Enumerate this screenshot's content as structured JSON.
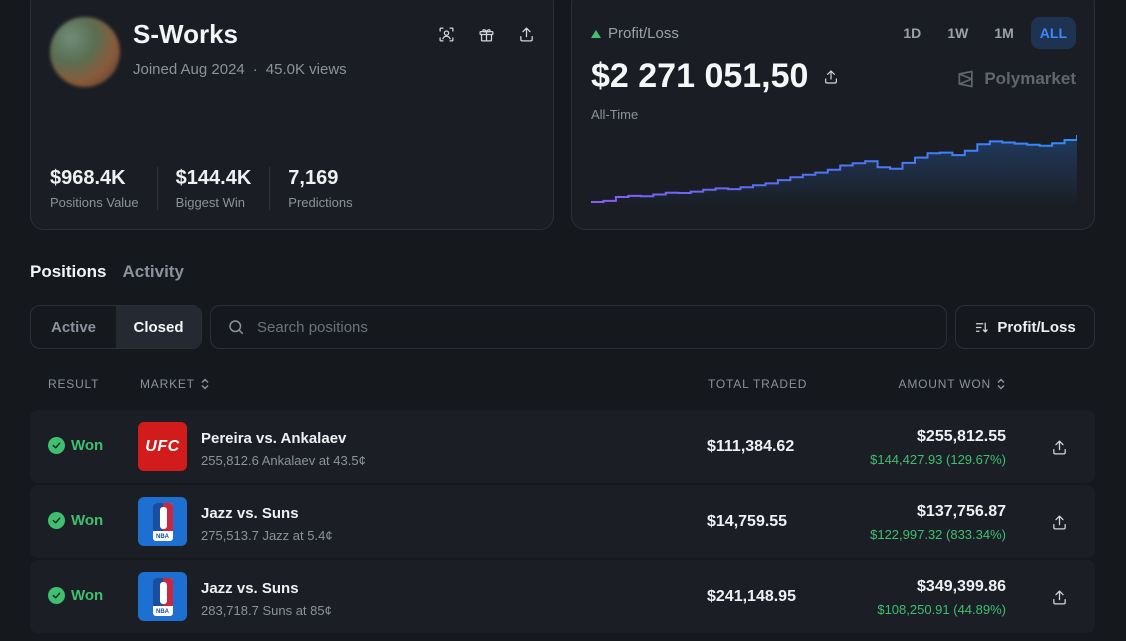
{
  "profile": {
    "username": "S-Works",
    "joined": "Joined Aug 2024",
    "views": "45.0K views",
    "stats": [
      {
        "value": "$968.4K",
        "label": "Positions Value"
      },
      {
        "value": "$144.4K",
        "label": "Biggest Win"
      },
      {
        "value": "7,169",
        "label": "Predictions"
      }
    ]
  },
  "pnl": {
    "label": "Profit/Loss",
    "value": "$2 271 051,50",
    "period": "All-Time",
    "brand": "Polymarket",
    "ranges": [
      "1D",
      "1W",
      "1M",
      "ALL"
    ],
    "active_range": "ALL",
    "series": [
      0.5,
      0.8,
      1.9,
      2.2,
      2.1,
      2.6,
      3.1,
      3.0,
      3.4,
      3.9,
      4.3,
      4.1,
      4.6,
      5.2,
      5.7,
      6.6,
      7.4,
      8.1,
      8.7,
      9.5,
      10.7,
      11.3,
      11.9,
      10.2,
      9.8,
      11.4,
      12.9,
      14.1,
      14.3,
      13.6,
      14.8,
      16.6,
      17.4,
      17.1,
      16.8,
      16.5,
      16.2,
      16.9,
      17.8,
      19.2
    ]
  },
  "tabs": {
    "positions": "Positions",
    "activity": "Activity"
  },
  "filters": {
    "active": "Active",
    "closed": "Closed",
    "search_placeholder": "Search positions",
    "sort_label": "Profit/Loss"
  },
  "columns": {
    "result": "RESULT",
    "market": "MARKET",
    "total_traded": "TOTAL TRADED",
    "amount_won": "AMOUNT WON"
  },
  "rows": [
    {
      "result": "Won",
      "logo": "UFC",
      "title": "Pereira vs. Ankalaev",
      "subtitle": "255,812.6 Ankalaev at 43.5¢",
      "traded": "$111,384.62",
      "won": "$255,812.55",
      "won_detail": "$144,427.93 (129.67%)"
    },
    {
      "result": "Won",
      "logo": "NBA",
      "title": "Jazz vs. Suns",
      "subtitle": "275,513.7 Jazz at 5.4¢",
      "traded": "$14,759.55",
      "won": "$137,756.87",
      "won_detail": "$122,997.32 (833.34%)"
    },
    {
      "result": "Won",
      "logo": "NBA",
      "title": "Jazz vs. Suns",
      "subtitle": "283,718.7 Suns at 85¢",
      "traded": "$241,148.95",
      "won": "$349,399.86",
      "won_detail": "$108,250.91 (44.89%)"
    }
  ]
}
